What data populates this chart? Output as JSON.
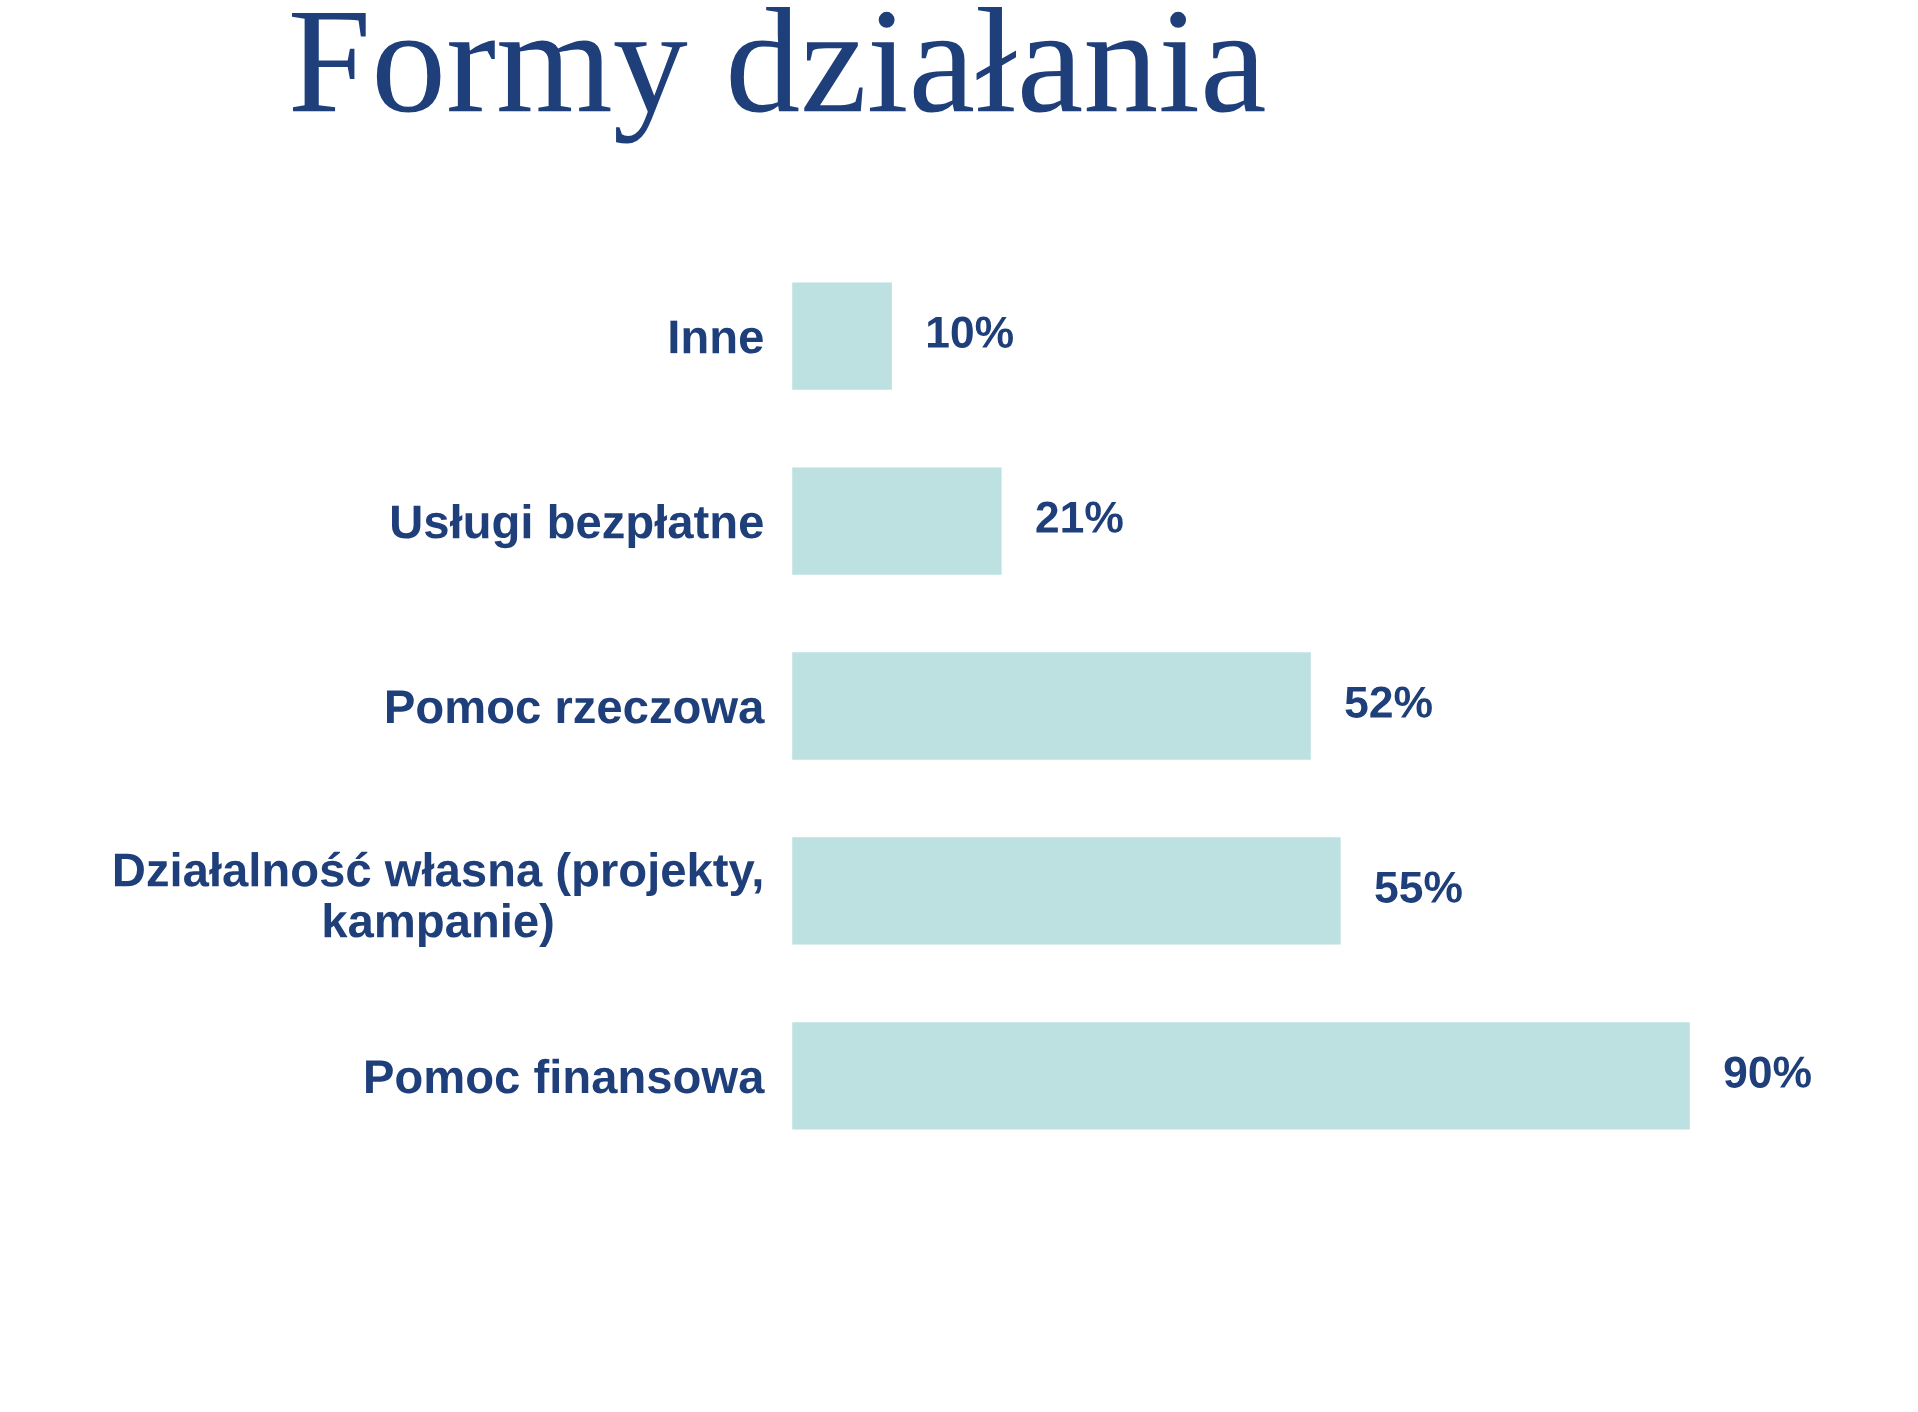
{
  "chart_data": {
    "type": "bar",
    "orientation": "horizontal",
    "title": "Formy działania",
    "categories": [
      "Inne",
      "Usługi bezpłatne",
      "Pomoc rzeczowa",
      "Działalność własna (projekty,\nkampanie)",
      "Pomoc finansowa"
    ],
    "values": [
      10,
      21,
      52,
      55,
      90
    ],
    "value_labels": [
      "10%",
      "21%",
      "52%",
      "55%",
      "90%"
    ],
    "color": "#bde0e1",
    "tick_labels": "y",
    "grid": false,
    "legend": false
  }
}
